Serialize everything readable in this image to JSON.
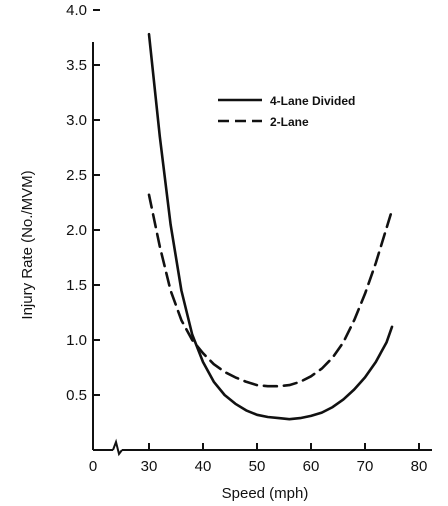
{
  "chart_data": {
    "type": "line",
    "xlabel": "Speed (mph)",
    "ylabel": "Injury Rate (No./MVM)",
    "xlim": [
      0,
      80
    ],
    "ylim": [
      0,
      4.0
    ],
    "x_ticks": [
      "0",
      "30",
      "40",
      "50",
      "60",
      "70",
      "80"
    ],
    "y_ticks": [
      "0.5",
      "1.0",
      "1.5",
      "2.0",
      "2.5",
      "3.0",
      "3.5",
      "4.0"
    ],
    "x_axis_break_between": [
      0,
      30
    ],
    "grid": false,
    "legend_position": "top-right",
    "series": [
      {
        "name": "4-Lane Divided",
        "line_style": "solid",
        "x": [
          30,
          32,
          34,
          36,
          38,
          40,
          42,
          44,
          46,
          48,
          50,
          52,
          54,
          56,
          58,
          60,
          62,
          64,
          66,
          68,
          70,
          72,
          74,
          75
        ],
        "y": [
          3.78,
          2.85,
          2.05,
          1.45,
          1.05,
          0.8,
          0.62,
          0.5,
          0.42,
          0.36,
          0.32,
          0.3,
          0.29,
          0.28,
          0.29,
          0.31,
          0.34,
          0.39,
          0.46,
          0.55,
          0.66,
          0.8,
          0.98,
          1.12
        ]
      },
      {
        "name": "2-Lane",
        "line_style": "dashed",
        "x": [
          30,
          32,
          34,
          36,
          38,
          40,
          42,
          44,
          46,
          48,
          50,
          52,
          54,
          56,
          58,
          60,
          62,
          64,
          66,
          68,
          70,
          72,
          74,
          75
        ],
        "y": [
          2.32,
          1.85,
          1.45,
          1.18,
          1.0,
          0.88,
          0.78,
          0.71,
          0.66,
          0.62,
          0.59,
          0.58,
          0.58,
          0.59,
          0.62,
          0.67,
          0.74,
          0.84,
          0.98,
          1.18,
          1.42,
          1.7,
          2.02,
          2.18
        ]
      }
    ]
  }
}
